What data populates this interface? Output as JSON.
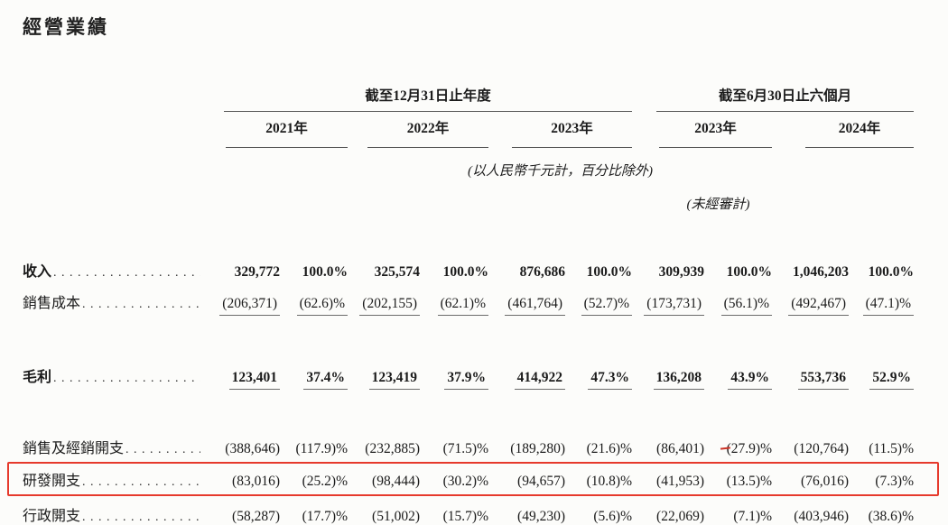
{
  "page": {
    "title": "經營業績",
    "background_color": "#fcfcfa",
    "highlight_color": "#e63a2c",
    "text_color": "#1b1b1b"
  },
  "table": {
    "column_groups": [
      {
        "label": "截至12月31日止年度"
      },
      {
        "label": "截至6月30日止六個月"
      }
    ],
    "year_headers": [
      "2021年",
      "2022年",
      "2023年",
      "2023年",
      "2024年"
    ],
    "notes": {
      "units": "(以人民幣千元計，百分比除外)",
      "unaudited": "(未經審計)"
    },
    "rows": [
      {
        "label": "收入",
        "bold": true,
        "values": [
          "329,772",
          "100.0%",
          "325,574",
          "100.0%",
          "876,686",
          "100.0%",
          "309,939",
          "100.0%",
          "1,046,203",
          "100.0%"
        ]
      },
      {
        "label": "銷售成本",
        "bold": false,
        "underline": true,
        "values": [
          "(206,371)",
          "(62.6)%",
          "(202,155)",
          "(62.1)%",
          "(461,764)",
          "(52.7)%",
          "(173,731)",
          "(56.1)%",
          "(492,467)",
          "(47.1)%"
        ]
      },
      {
        "label": "毛利",
        "bold": true,
        "underline": true,
        "values": [
          "123,401",
          "37.4%",
          "123,419",
          "37.9%",
          "414,922",
          "47.3%",
          "136,208",
          "43.9%",
          "553,736",
          "52.9%"
        ]
      },
      {
        "label": "銷售及經銷開支",
        "bold": false,
        "values": [
          "(388,646)",
          "(117.9)%",
          "(232,885)",
          "(71.5)%",
          "(189,280)",
          "(21.6)%",
          "(86,401)",
          "(27.9)%",
          "(120,764)",
          "(11.5)%"
        ]
      },
      {
        "label": "研發開支",
        "bold": false,
        "highlighted": true,
        "values": [
          "(83,016)",
          "(25.2)%",
          "(98,444)",
          "(30.2)%",
          "(94,657)",
          "(10.8)%",
          "(41,953)",
          "(13.5)%",
          "(76,016)",
          "(7.3)%"
        ]
      },
      {
        "label": "行政開支",
        "bold": false,
        "values": [
          "(58,287)",
          "(17.7)%",
          "(51,002)",
          "(15.7)%",
          "(49,230)",
          "(5.6)%",
          "(22,069)",
          "(7.1)%",
          "(403,946)",
          "(38.6)%"
        ]
      }
    ]
  }
}
